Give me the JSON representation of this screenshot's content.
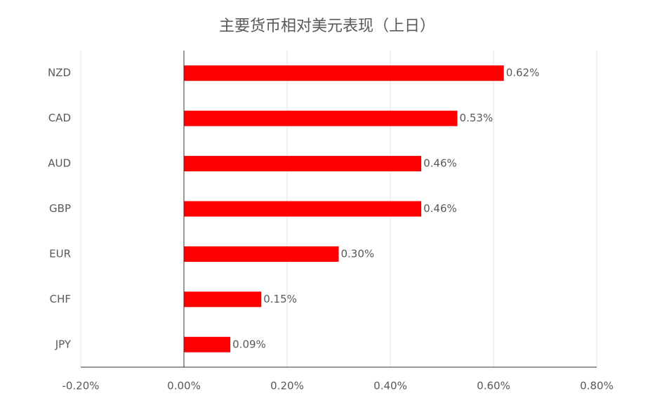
{
  "chart_data": {
    "type": "hbar",
    "title": "主要货币相对美元表现（上日）",
    "categories": [
      "NZD",
      "CAD",
      "AUD",
      "GBP",
      "EUR",
      "CHF",
      "JPY"
    ],
    "values": [
      0.62,
      0.53,
      0.46,
      0.46,
      0.3,
      0.15,
      0.09
    ],
    "value_labels": [
      "0.62%",
      "0.53%",
      "0.46%",
      "0.46%",
      "0.30%",
      "0.15%",
      "0.09%"
    ],
    "color": "#ff0000",
    "xlim": [
      -0.2,
      0.8
    ],
    "xticks": [
      {
        "value": -0.2,
        "label": "-0.20%"
      },
      {
        "value": 0,
        "label": "0.00%"
      },
      {
        "value": 0.2,
        "label": "0.20%"
      },
      {
        "value": 0.4,
        "label": "0.40%"
      },
      {
        "value": 0.6,
        "label": "0.60%"
      },
      {
        "value": 0.8,
        "label": "0.80%"
      }
    ],
    "grid": true
  }
}
